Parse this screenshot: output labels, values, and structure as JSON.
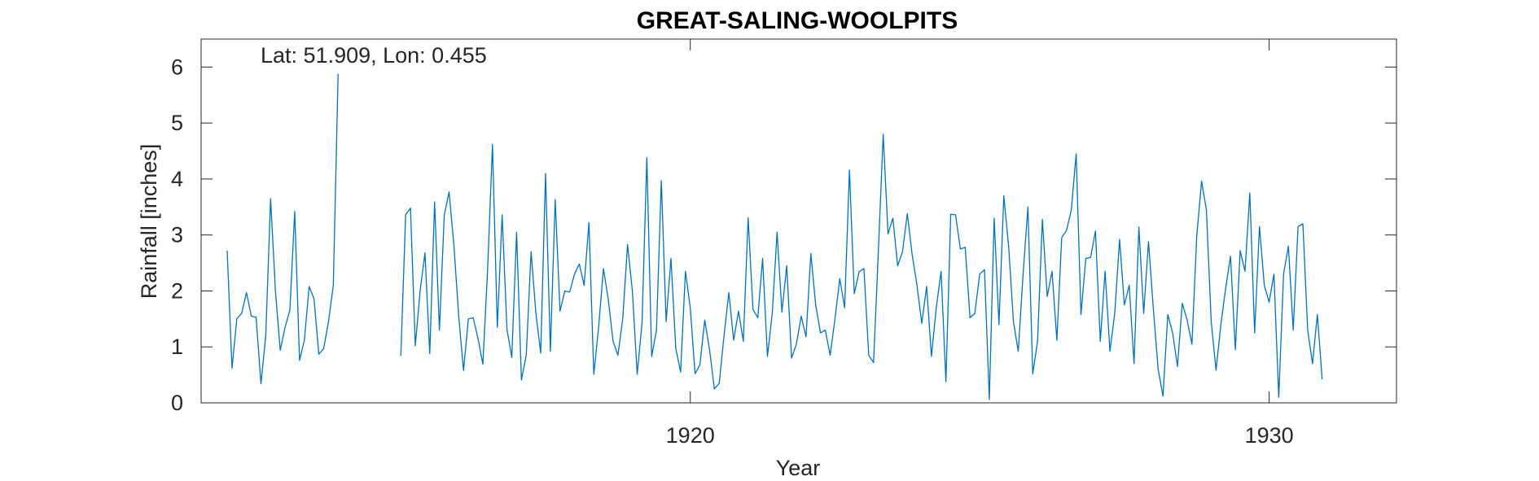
{
  "chart_data": {
    "type": "line",
    "title": "GREAT-SALING-WOOLPITS",
    "xlabel": "Year",
    "ylabel": "Rainfall [inches]",
    "annotation": "Lat: 51.909, Lon: 0.455",
    "xlim": [
      1911.55,
      1932.2
    ],
    "ylim": [
      0,
      6.5
    ],
    "x_ticks": [
      1920,
      1930
    ],
    "x_tick_labels": [
      "1920",
      "1930"
    ],
    "y_ticks": [
      0,
      1,
      2,
      3,
      4,
      5,
      6
    ],
    "y_tick_labels": [
      "0",
      "1",
      "2",
      "3",
      "4",
      "5",
      "6"
    ],
    "grid": false,
    "box": true,
    "line_color": "#0072BD",
    "series": [
      {
        "start_year": 1912.0,
        "step": 0.08333,
        "values": [
          2.72,
          0.62,
          1.5,
          1.6,
          1.97,
          1.55,
          1.53,
          0.34,
          1.2,
          3.65,
          2.0,
          0.94,
          1.35,
          1.66,
          3.42,
          0.76,
          1.12,
          2.08,
          1.86,
          0.87,
          0.97,
          1.45,
          2.1,
          5.88,
          null,
          null,
          null,
          null,
          null,
          null,
          null,
          null,
          null,
          null,
          null,
          null,
          0.84,
          3.36,
          3.48,
          1.02,
          2.0,
          2.68,
          0.88,
          3.59,
          1.3,
          3.35,
          3.77,
          2.82,
          1.55,
          0.58,
          1.5,
          1.52,
          1.15,
          0.69,
          2.4,
          4.62,
          1.35,
          3.36,
          1.32,
          0.81,
          3.05,
          0.41,
          0.85,
          2.7,
          1.6,
          0.89,
          4.1,
          0.92,
          3.63,
          1.64,
          2.0,
          1.98,
          2.3,
          2.48,
          2.1,
          3.22,
          0.51,
          1.35,
          2.4,
          1.85,
          1.1,
          0.85,
          1.5,
          2.83,
          2.0,
          0.51,
          1.43,
          4.38,
          0.83,
          1.3,
          3.97,
          1.45,
          2.58,
          0.97,
          0.55,
          2.35,
          1.7,
          0.52,
          0.68,
          1.48,
          0.95,
          0.25,
          0.35,
          1.2,
          1.97,
          1.12,
          1.64,
          1.1,
          3.31,
          1.67,
          1.52,
          2.58,
          0.83,
          1.6,
          3.05,
          1.62,
          2.45,
          0.8,
          1.05,
          1.55,
          1.18,
          2.67,
          1.75,
          1.25,
          1.3,
          0.85,
          1.5,
          2.22,
          1.7,
          4.16,
          1.95,
          2.34,
          2.4,
          0.85,
          0.72,
          2.72,
          4.8,
          3.02,
          3.3,
          2.45,
          2.7,
          3.38,
          2.65,
          2.1,
          1.42,
          2.08,
          0.83,
          1.7,
          2.35,
          0.38,
          3.37,
          3.36,
          2.75,
          2.78,
          1.52,
          1.6,
          2.3,
          2.38,
          0.06,
          3.3,
          1.4,
          3.7,
          2.8,
          1.45,
          0.92,
          2.3,
          3.5,
          0.52,
          1.1,
          3.28,
          1.9,
          2.35,
          1.12,
          2.95,
          3.08,
          3.45,
          4.45,
          1.58,
          2.58,
          2.6,
          3.07,
          1.1,
          2.35,
          0.92,
          1.6,
          2.92,
          1.75,
          2.1,
          0.7,
          3.14,
          1.6,
          2.88,
          1.68,
          0.6,
          0.12,
          1.58,
          1.25,
          0.65,
          1.78,
          1.48,
          1.05,
          2.98,
          3.96,
          3.45,
          1.45,
          0.58,
          1.4,
          2.05,
          2.62,
          0.95,
          2.72,
          2.35,
          3.75,
          1.25,
          3.15,
          2.1,
          1.8,
          2.3,
          0.1,
          2.3,
          2.8,
          1.3,
          3.15,
          3.2,
          1.3,
          0.7,
          1.58,
          0.42
        ]
      }
    ]
  }
}
